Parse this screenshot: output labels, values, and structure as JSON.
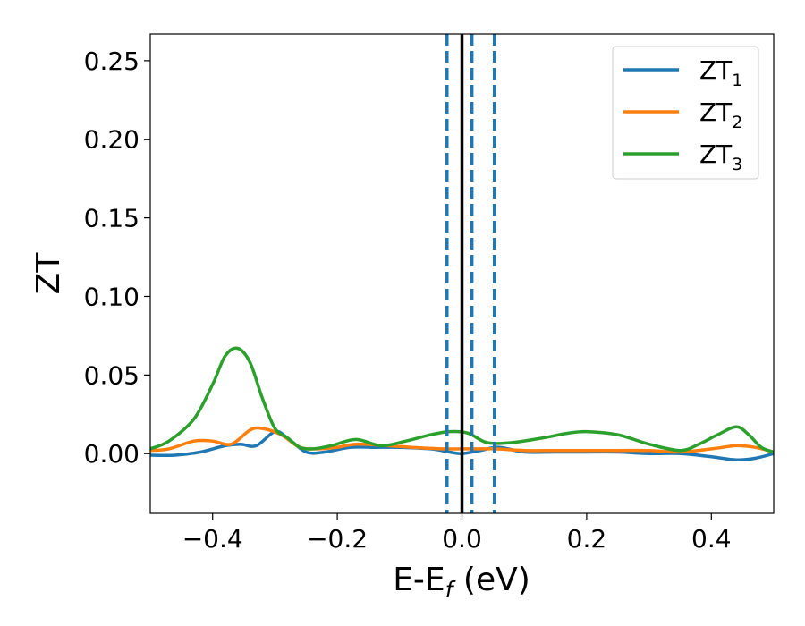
{
  "chart_data": {
    "type": "line",
    "title": "",
    "xlabel": {
      "main": "E-E",
      "sub": "f",
      "unit": " (eV)"
    },
    "ylabel": "ZT",
    "xlim": [
      -0.5,
      0.5
    ],
    "ylim": [
      -0.038,
      0.267
    ],
    "x_ticks": [
      -0.4,
      -0.2,
      0.0,
      0.2,
      0.4
    ],
    "x_tick_labels": [
      "−0.4",
      "−0.2",
      "0.0",
      "0.2",
      "0.4"
    ],
    "y_ticks": [
      0.0,
      0.05,
      0.1,
      0.15,
      0.2,
      0.25
    ],
    "y_tick_labels": [
      "0.00",
      "0.05",
      "0.10",
      "0.15",
      "0.20",
      "0.25"
    ],
    "grid": false,
    "legend_position": "top-right",
    "series": [
      {
        "name": "ZT",
        "name_sub": "1",
        "color": "#1f77b4",
        "points": [
          [
            -0.5,
            -0.001
          ],
          [
            -0.46,
            -0.001
          ],
          [
            -0.42,
            0.001
          ],
          [
            -0.38,
            0.005
          ],
          [
            -0.355,
            0.006
          ],
          [
            -0.33,
            0.005
          ],
          [
            -0.3,
            0.014
          ],
          [
            -0.28,
            0.01
          ],
          [
            -0.25,
            0.001
          ],
          [
            -0.22,
            0.001
          ],
          [
            -0.18,
            0.004
          ],
          [
            -0.14,
            0.004
          ],
          [
            -0.1,
            0.004
          ],
          [
            -0.05,
            0.003
          ],
          [
            -0.02,
            0.001
          ],
          [
            0.0,
            0.0
          ],
          [
            0.03,
            0.002
          ],
          [
            0.06,
            0.004
          ],
          [
            0.1,
            0.001
          ],
          [
            0.15,
            0.001
          ],
          [
            0.2,
            0.001
          ],
          [
            0.25,
            0.001
          ],
          [
            0.3,
            0.0
          ],
          [
            0.35,
            0.0
          ],
          [
            0.4,
            -0.002
          ],
          [
            0.44,
            -0.004
          ],
          [
            0.47,
            -0.003
          ],
          [
            0.5,
            0.0
          ]
        ]
      },
      {
        "name": "ZT",
        "name_sub": "2",
        "color": "#ff7f0e",
        "points": [
          [
            -0.5,
            0.002
          ],
          [
            -0.47,
            0.003
          ],
          [
            -0.43,
            0.008
          ],
          [
            -0.4,
            0.008
          ],
          [
            -0.37,
            0.006
          ],
          [
            -0.34,
            0.015
          ],
          [
            -0.32,
            0.016
          ],
          [
            -0.29,
            0.012
          ],
          [
            -0.26,
            0.004
          ],
          [
            -0.23,
            0.003
          ],
          [
            -0.2,
            0.004
          ],
          [
            -0.17,
            0.006
          ],
          [
            -0.12,
            0.005
          ],
          [
            -0.08,
            0.004
          ],
          [
            -0.03,
            0.003
          ],
          [
            0.0,
            0.003
          ],
          [
            0.05,
            0.003
          ],
          [
            0.1,
            0.002
          ],
          [
            0.15,
            0.002
          ],
          [
            0.2,
            0.002
          ],
          [
            0.25,
            0.002
          ],
          [
            0.3,
            0.002
          ],
          [
            0.35,
            0.001
          ],
          [
            0.4,
            0.003
          ],
          [
            0.44,
            0.005
          ],
          [
            0.47,
            0.004
          ],
          [
            0.5,
            0.001
          ]
        ]
      },
      {
        "name": "ZT",
        "name_sub": "3",
        "color": "#2ca02c",
        "points": [
          [
            -0.5,
            0.003
          ],
          [
            -0.47,
            0.008
          ],
          [
            -0.43,
            0.022
          ],
          [
            -0.4,
            0.044
          ],
          [
            -0.38,
            0.062
          ],
          [
            -0.36,
            0.067
          ],
          [
            -0.34,
            0.058
          ],
          [
            -0.32,
            0.035
          ],
          [
            -0.3,
            0.016
          ],
          [
            -0.28,
            0.01
          ],
          [
            -0.26,
            0.004
          ],
          [
            -0.24,
            0.003
          ],
          [
            -0.21,
            0.005
          ],
          [
            -0.17,
            0.009
          ],
          [
            -0.13,
            0.005
          ],
          [
            -0.09,
            0.008
          ],
          [
            -0.05,
            0.012
          ],
          [
            -0.02,
            0.014
          ],
          [
            0.01,
            0.013
          ],
          [
            0.04,
            0.007
          ],
          [
            0.08,
            0.007
          ],
          [
            0.13,
            0.01
          ],
          [
            0.17,
            0.013
          ],
          [
            0.2,
            0.014
          ],
          [
            0.25,
            0.012
          ],
          [
            0.3,
            0.006
          ],
          [
            0.35,
            0.002
          ],
          [
            0.38,
            0.006
          ],
          [
            0.41,
            0.012
          ],
          [
            0.44,
            0.017
          ],
          [
            0.46,
            0.012
          ],
          [
            0.48,
            0.004
          ],
          [
            0.5,
            0.001
          ]
        ]
      }
    ],
    "vlines": [
      {
        "x": 0.0,
        "style": "solid",
        "color": "#000000"
      },
      {
        "x": -0.024,
        "style": "dashed",
        "color": "#1f77b4"
      },
      {
        "x": 0.016,
        "style": "dashed",
        "color": "#1f77b4"
      },
      {
        "x": 0.052,
        "style": "dashed",
        "color": "#1f77b4"
      }
    ]
  }
}
